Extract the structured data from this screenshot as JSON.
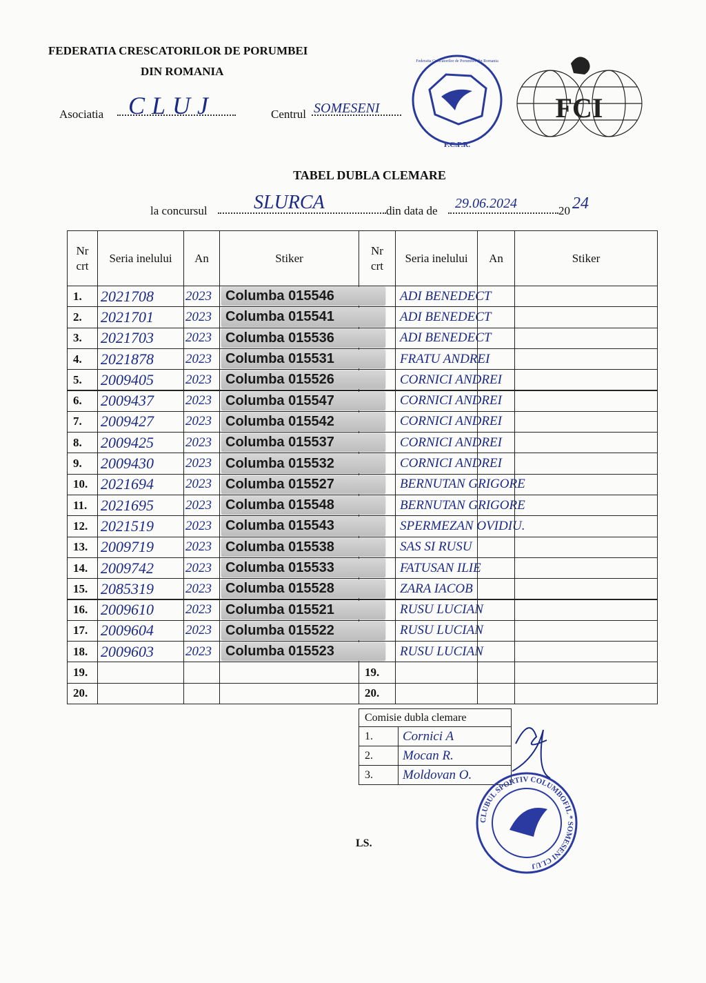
{
  "header": {
    "org_line1": "FEDERATIA CRESCATORILOR DE PORUMBEI",
    "org_line2": "DIN ROMANIA",
    "association_label": "Asociatia",
    "association_value": "CLUJ",
    "center_label": "Centrul",
    "center_value": "SOMESENI",
    "fcpr_logo_text": "Federatia Crescatorilor de Porumbei din Romania",
    "fcpr_logo_abbr": "F.C.P.R.",
    "fci_logo_text": "FCI"
  },
  "title": "TABEL DUBLA CLEMARE",
  "contest": {
    "contest_label": "la concursul",
    "contest_value": "SLURCA",
    "date_label": "din data de",
    "date_value": "29.06.2024",
    "year_prefix": "20",
    "year_value": "24"
  },
  "table": {
    "columns": [
      "Nr crt",
      "Seria inelului",
      "An",
      "Stiker",
      "Nr crt",
      "Seria inelului",
      "An",
      "Stiker"
    ],
    "left_rows": [
      {
        "nr": "1.",
        "serial": "2021708",
        "year": "2023",
        "sticker": "Columba 015546"
      },
      {
        "nr": "2.",
        "serial": "2021701",
        "year": "2023",
        "sticker": "Columba 015541"
      },
      {
        "nr": "3.",
        "serial": "2021703",
        "year": "2023",
        "sticker": "Columba 015536"
      },
      {
        "nr": "4.",
        "serial": "2021878",
        "year": "2023",
        "sticker": "Columba 015531"
      },
      {
        "nr": "5.",
        "serial": "2009405",
        "year": "2023",
        "sticker": "Columba 015526"
      },
      {
        "nr": "6.",
        "serial": "2009437",
        "year": "2023",
        "sticker": "Columba 015547"
      },
      {
        "nr": "7.",
        "serial": "2009427",
        "year": "2023",
        "sticker": "Columba 015542"
      },
      {
        "nr": "8.",
        "serial": "2009425",
        "year": "2023",
        "sticker": "Columba 015537"
      },
      {
        "nr": "9.",
        "serial": "2009430",
        "year": "2023",
        "sticker": "Columba 015532"
      },
      {
        "nr": "10.",
        "serial": "2021694",
        "year": "2023",
        "sticker": "Columba 015527"
      },
      {
        "nr": "11.",
        "serial": "2021695",
        "year": "2023",
        "sticker": "Columba 015548"
      },
      {
        "nr": "12.",
        "serial": "2021519",
        "year": "2023",
        "sticker": "Columba 015543"
      },
      {
        "nr": "13.",
        "serial": "2009719",
        "year": "2023",
        "sticker": "Columba 015538"
      },
      {
        "nr": "14.",
        "serial": "2009742",
        "year": "2023",
        "sticker": "Columba 015533"
      },
      {
        "nr": "15.",
        "serial": "2085319",
        "year": "2023",
        "sticker": "Columba 015528"
      },
      {
        "nr": "16.",
        "serial": "2009610",
        "year": "2023",
        "sticker": "Columba 015521"
      },
      {
        "nr": "17.",
        "serial": "2009604",
        "year": "2023",
        "sticker": "Columba 015522"
      },
      {
        "nr": "18.",
        "serial": "2009603",
        "year": "2023",
        "sticker": "Columba 015523"
      },
      {
        "nr": "19."
      },
      {
        "nr": "20."
      }
    ],
    "right_rows": [
      {
        "name": "ADI BENEDECT"
      },
      {
        "name": "ADI BENEDECT"
      },
      {
        "name": "ADI BENEDECT"
      },
      {
        "name": "FRATU ANDREI"
      },
      {
        "name": "CORNICI ANDREI"
      },
      {
        "name": "CORNICI ANDREI"
      },
      {
        "name": "CORNICI ANDREI"
      },
      {
        "name": "CORNICI ANDREI"
      },
      {
        "name": "CORNICI ANDREI"
      },
      {
        "name": "BERNUTAN GRIGORE"
      },
      {
        "name": "BERNUTAN GRIGORE"
      },
      {
        "name": "SPERMEZAN OVIDIU."
      },
      {
        "name": "SAS SI RUSU"
      },
      {
        "name": "FATUSAN ILIE"
      },
      {
        "name": "ZARA IACOB"
      },
      {
        "name": "RUSU LUCIAN"
      },
      {
        "name": "RUSU LUCIAN"
      },
      {
        "name": "RUSU LUCIAN"
      },
      {
        "nr": "19."
      },
      {
        "nr": "20."
      }
    ]
  },
  "committee": {
    "title": "Comisie dubla clemare",
    "members": [
      {
        "nr": "1.",
        "name": "Cornici A"
      },
      {
        "nr": "2.",
        "name": "Mocan R."
      },
      {
        "nr": "3.",
        "name": "Moldovan O."
      }
    ]
  },
  "stamp": {
    "text": "CLUBUL SPORTIV COLUMBOFIL * SOMESENI CLUJ"
  },
  "ls": "LS."
}
